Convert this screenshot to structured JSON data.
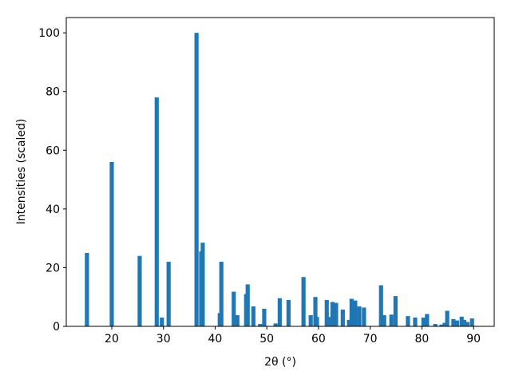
{
  "chart_data": {
    "type": "bar",
    "x": [
      15.2,
      20.0,
      25.4,
      28.7,
      29.7,
      31.0,
      36.4,
      37.3,
      37.6,
      40.9,
      41.2,
      43.6,
      44.3,
      46.0,
      46.3,
      47.4,
      48.7,
      49.5,
      51.7,
      52.5,
      54.2,
      57.1,
      58.5,
      59.4,
      59.7,
      61.6,
      62.0,
      62.7,
      63.4,
      64.7,
      65.9,
      66.4,
      67.1,
      67.9,
      68.8,
      72.1,
      72.7,
      74.1,
      74.9,
      77.3,
      78.7,
      80.3,
      81.0,
      82.6,
      83.8,
      84.4,
      84.9,
      86.1,
      86.8,
      87.7,
      88.2,
      88.8,
      89.7
    ],
    "values": [
      25,
      56,
      24,
      78,
      3,
      22,
      100,
      25.5,
      28.5,
      4.5,
      22,
      11.8,
      3.8,
      11,
      14.3,
      6.8,
      0.8,
      6,
      1,
      9.6,
      9,
      16.8,
      3.8,
      10,
      3.2,
      9,
      3.2,
      8.3,
      8,
      5.7,
      2.2,
      9.4,
      8.8,
      6.8,
      6.4,
      14,
      3.8,
      4,
      10.3,
      3.5,
      3,
      3,
      4.2,
      0.8,
      0.6,
      1.2,
      5.3,
      2.5,
      2,
      3.3,
      2.2,
      1.5,
      2.7
    ],
    "bar_width": 0.8,
    "color": "#1f77b4",
    "xlabel": "2θ (°)",
    "ylabel": "Intensities (scaled)",
    "xlim": [
      11.2,
      94.0
    ],
    "xticks": [
      20,
      30,
      40,
      50,
      60,
      70,
      80,
      90
    ],
    "ylim": [
      0,
      105.2
    ],
    "yticks": [
      0,
      20,
      40,
      60,
      80,
      100
    ]
  }
}
